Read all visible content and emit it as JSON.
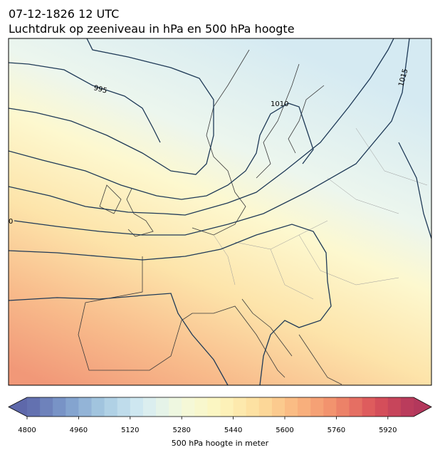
{
  "header": {
    "date": "07-12-1826 12 UTC",
    "title": "Luchtdruk op zeeniveau in hPa en 500 hPa hoogte"
  },
  "map": {
    "contour_labels": [
      "995",
      "1010",
      "1015",
      "0"
    ]
  },
  "colorbar": {
    "lim": [
      4800,
      6000
    ],
    "ticks": [
      4800,
      4960,
      5120,
      5280,
      5440,
      5600,
      5760,
      5920
    ],
    "label": "500 hPa hoogte in meter",
    "colormap": [
      "#5e68aa",
      "#7d9ccb",
      "#a8cce2",
      "#d6ecf3",
      "#f3f9dc",
      "#fdf5bd",
      "#fddd9d",
      "#f9b67f",
      "#f08c6b",
      "#da525a",
      "#b3385c"
    ]
  }
}
